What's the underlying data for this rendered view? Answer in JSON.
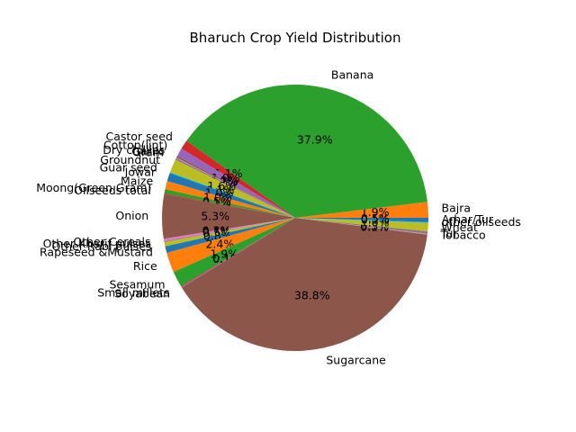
{
  "chart_data": {
    "type": "pie",
    "title": "Bharuch Crop Yield Distribution",
    "start_angle_deg": 0,
    "counterclock": true,
    "slices": [
      {
        "label": "Bajra",
        "value": 1.9,
        "pct_label": "1.9%",
        "color": "#ff7f0e"
      },
      {
        "label": "Banana",
        "value": 37.9,
        "pct_label": "37.9%",
        "color": "#2ca02c"
      },
      {
        "label": "Castor seed",
        "value": 1.1,
        "pct_label": "1.1%",
        "color": "#d62728"
      },
      {
        "label": "Cotton(lint)",
        "value": 1.0,
        "pct_label": "1.0%",
        "color": "#9467bd"
      },
      {
        "label": "Dry chillies",
        "value": 0.2,
        "pct_label": "0.2%",
        "color": "#8c564b"
      },
      {
        "label": "Garlic",
        "value": 0.1,
        "pct_label": "0.1%",
        "color": "#e377c2"
      },
      {
        "label": "Gram",
        "value": 0.2,
        "pct_label": "0.2%",
        "color": "#7f7f7f"
      },
      {
        "label": "Groundnut",
        "value": 1.6,
        "pct_label": "1.6%",
        "color": "#bcbd22"
      },
      {
        "label": "Guar seed",
        "value": 0.1,
        "pct_label": "0.1%",
        "color": "#17becf"
      },
      {
        "label": "Jowar",
        "value": 1.0,
        "pct_label": "1.0%",
        "color": "#1f77b4"
      },
      {
        "label": "Maize",
        "value": 1.0,
        "pct_label": "1.0%",
        "color": "#ff7f0e"
      },
      {
        "label": "Moong(Green Gram)",
        "value": 0.5,
        "pct_label": "0.5%",
        "color": "#2ca02c"
      },
      {
        "label": "Oilseeds total",
        "value": 0.1,
        "pct_label": "0.1%",
        "color": "#d62728"
      },
      {
        "label": "Onion",
        "value": 5.3,
        "pct_label": "5.3%",
        "color": "#8c564b"
      },
      {
        "label": "Other Cereals",
        "value": 0.3,
        "pct_label": "0.3%",
        "color": "#e377c2"
      },
      {
        "label": "Other Kharif pulses",
        "value": 0.1,
        "pct_label": "0.1%",
        "color": "#7f7f7f"
      },
      {
        "label": "Other Rabi pulses",
        "value": 0.5,
        "pct_label": "0.5%",
        "color": "#bcbd22"
      },
      {
        "label": "Rapeseed &Mustard",
        "value": 0.8,
        "pct_label": "0.8%",
        "color": "#1f77b4"
      },
      {
        "label": "Rice",
        "value": 2.4,
        "pct_label": "2.4%",
        "color": "#ff7f0e"
      },
      {
        "label": "Sesamum",
        "value": 1.9,
        "pct_label": "1.9%",
        "color": "#2ca02c"
      },
      {
        "label": "Small millets",
        "value": 0.1,
        "pct_label": "0.1%",
        "color": "#d62728"
      },
      {
        "label": "Soyabean",
        "value": 0.1,
        "pct_label": "0.1%",
        "color": "#9467bd"
      },
      {
        "label": "Sugarcane",
        "value": 38.8,
        "pct_label": "38.8%",
        "color": "#8c564b"
      },
      {
        "label": "Tobacco",
        "value": 0.1,
        "pct_label": "0.1%",
        "color": "#e377c2"
      },
      {
        "label": "Tur",
        "value": 0.3,
        "pct_label": "0.3%",
        "color": "#7f7f7f"
      },
      {
        "label": "Wheat",
        "value": 1.0,
        "pct_label": "1.0%",
        "color": "#bcbd22"
      },
      {
        "label": "other oilseeds",
        "value": 0.1,
        "pct_label": "0.1%",
        "color": "#17becf"
      },
      {
        "label": "Arhar/Tur",
        "value": 0.5,
        "pct_label": "0.5%",
        "color": "#1f77b4"
      }
    ]
  }
}
